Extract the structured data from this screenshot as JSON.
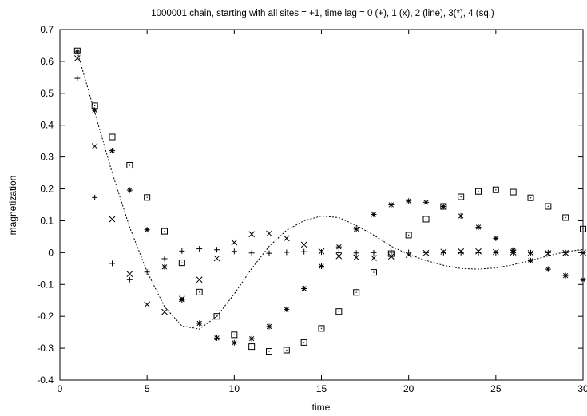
{
  "chart_data": {
    "type": "scatter",
    "title": "1000001 chain,  starting with all sites = +1, time lag = 0 (+), 1 (x), 2 (line), 3(*), 4 (sq.)",
    "xlabel": "time",
    "ylabel": "magnetization",
    "xlim": [
      0,
      30
    ],
    "ylim": [
      -0.4,
      0.7
    ],
    "xticks": [
      0,
      5,
      10,
      15,
      20,
      25,
      30
    ],
    "yticks": [
      -0.4,
      -0.3,
      -0.2,
      -0.1,
      0,
      0.1,
      0.2,
      0.3,
      0.4,
      0.5,
      0.6,
      0.7
    ],
    "grid": false,
    "legend": "none",
    "series": [
      {
        "name": "time lag = 0 (+)",
        "marker": "plus",
        "x": [
          1,
          2,
          3,
          4,
          5,
          6,
          7,
          8,
          9,
          10,
          11,
          12,
          13,
          14,
          15,
          16,
          17,
          18,
          19,
          20,
          21,
          22,
          23,
          24,
          25,
          26,
          27,
          28,
          29,
          30
        ],
        "y": [
          0.547,
          0.173,
          -0.034,
          -0.085,
          -0.061,
          -0.019,
          0.005,
          0.012,
          0.009,
          0.004,
          -0.001,
          -0.002,
          0.001,
          0.003,
          0.002,
          0.0,
          -0.001,
          0.0,
          0.001,
          0.001,
          0.0,
          0.0,
          0.0,
          0.0,
          0.0,
          0.0,
          0.0,
          0.0,
          0.0,
          0.0
        ]
      },
      {
        "name": "time lag = 1 (x)",
        "marker": "cross",
        "x": [
          1,
          2,
          3,
          4,
          5,
          6,
          7,
          8,
          9,
          10,
          11,
          12,
          13,
          14,
          15,
          16,
          17,
          18,
          19,
          20,
          21,
          22,
          23,
          24,
          25,
          26,
          27,
          28,
          29,
          30
        ],
        "y": [
          0.61,
          0.334,
          0.105,
          -0.067,
          -0.163,
          -0.186,
          -0.145,
          -0.085,
          -0.018,
          0.032,
          0.058,
          0.06,
          0.045,
          0.025,
          0.004,
          -0.011,
          -0.015,
          -0.017,
          -0.012,
          -0.007,
          -0.001,
          0.003,
          0.004,
          0.004,
          0.002,
          0.001,
          -0.001,
          -0.002,
          -0.001,
          0.0
        ]
      },
      {
        "name": "time lag = 2 (line)",
        "marker": "line",
        "x": [
          1,
          2,
          3,
          4,
          5,
          6,
          7,
          8,
          9,
          10,
          11,
          12,
          13,
          14,
          15,
          16,
          17,
          18,
          19,
          20,
          21,
          22,
          23,
          24,
          25,
          26,
          27,
          28,
          29,
          30
        ],
        "y": [
          0.63,
          0.44,
          0.25,
          0.08,
          -0.06,
          -0.17,
          -0.23,
          -0.24,
          -0.2,
          -0.13,
          -0.05,
          0.02,
          0.07,
          0.1,
          0.115,
          0.11,
          0.085,
          0.055,
          0.02,
          -0.005,
          -0.025,
          -0.04,
          -0.05,
          -0.052,
          -0.048,
          -0.038,
          -0.025,
          -0.01,
          0.003,
          0.01
        ]
      },
      {
        "name": "time lag = 3 (*)",
        "marker": "star",
        "x": [
          1,
          2,
          3,
          4,
          5,
          6,
          7,
          8,
          9,
          10,
          11,
          12,
          13,
          14,
          15,
          16,
          17,
          18,
          19,
          20,
          21,
          22,
          23,
          24,
          25,
          26,
          27,
          28,
          29,
          30
        ],
        "y": [
          0.63,
          0.447,
          0.32,
          0.196,
          0.072,
          -0.045,
          -0.148,
          -0.222,
          -0.268,
          -0.283,
          -0.27,
          -0.232,
          -0.178,
          -0.113,
          -0.043,
          0.018,
          0.074,
          0.12,
          0.15,
          0.162,
          0.158,
          0.145,
          0.115,
          0.08,
          0.045,
          0.008,
          -0.025,
          -0.052,
          -0.072,
          -0.085
        ]
      },
      {
        "name": "time lag = 4 (sq.)",
        "marker": "square",
        "x": [
          1,
          2,
          3,
          4,
          5,
          6,
          7,
          8,
          9,
          10,
          11,
          12,
          13,
          14,
          15,
          16,
          17,
          18,
          19,
          20,
          21,
          22,
          23,
          24,
          25,
          26,
          27,
          28,
          29,
          30
        ],
        "y": [
          0.633,
          0.461,
          0.363,
          0.274,
          0.173,
          0.067,
          -0.032,
          -0.124,
          -0.2,
          -0.258,
          -0.295,
          -0.31,
          -0.306,
          -0.282,
          -0.238,
          -0.185,
          -0.125,
          -0.062,
          -0.003,
          0.055,
          0.105,
          0.145,
          0.175,
          0.192,
          0.197,
          0.19,
          0.172,
          0.145,
          0.11,
          0.074
        ]
      }
    ]
  }
}
